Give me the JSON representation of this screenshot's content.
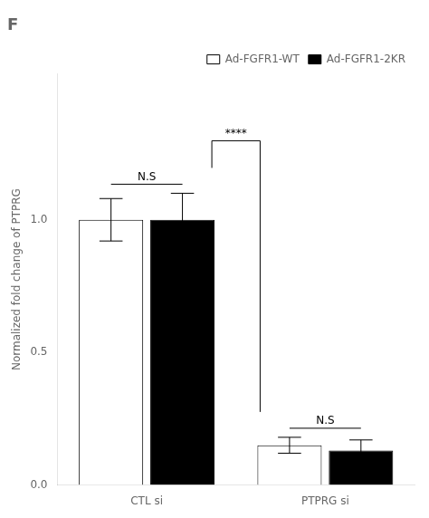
{
  "chart_data": {
    "type": "bar",
    "title": "F",
    "ylabel": "Normalized fold change of PTPRG",
    "categories": [
      "CTL si",
      "PTPRG si"
    ],
    "series": [
      {
        "name": "Ad-FGFR1-WT",
        "color": "white",
        "values": [
          1.0,
          0.15
        ],
        "errors": [
          0.08,
          0.03
        ]
      },
      {
        "name": "Ad-FGFR1-2KR",
        "color": "black",
        "values": [
          1.0,
          0.13
        ],
        "errors": [
          0.1,
          0.04
        ]
      }
    ],
    "ylim": [
      0,
      1.55
    ],
    "yticks": [
      {
        "value": 0.0,
        "label": "0.0"
      },
      {
        "value": 0.5,
        "label": "0.5"
      },
      {
        "value": 1.0,
        "label": "1.0"
      }
    ],
    "grid": false,
    "legend": "upper right",
    "annotations": [
      {
        "text": "N.S",
        "categories": [
          "CTL si"
        ]
      },
      {
        "text": "N.S",
        "categories": [
          "PTPRG si"
        ]
      },
      {
        "text": "****",
        "categories": [
          "CTL si",
          "PTPRG si"
        ]
      }
    ]
  }
}
